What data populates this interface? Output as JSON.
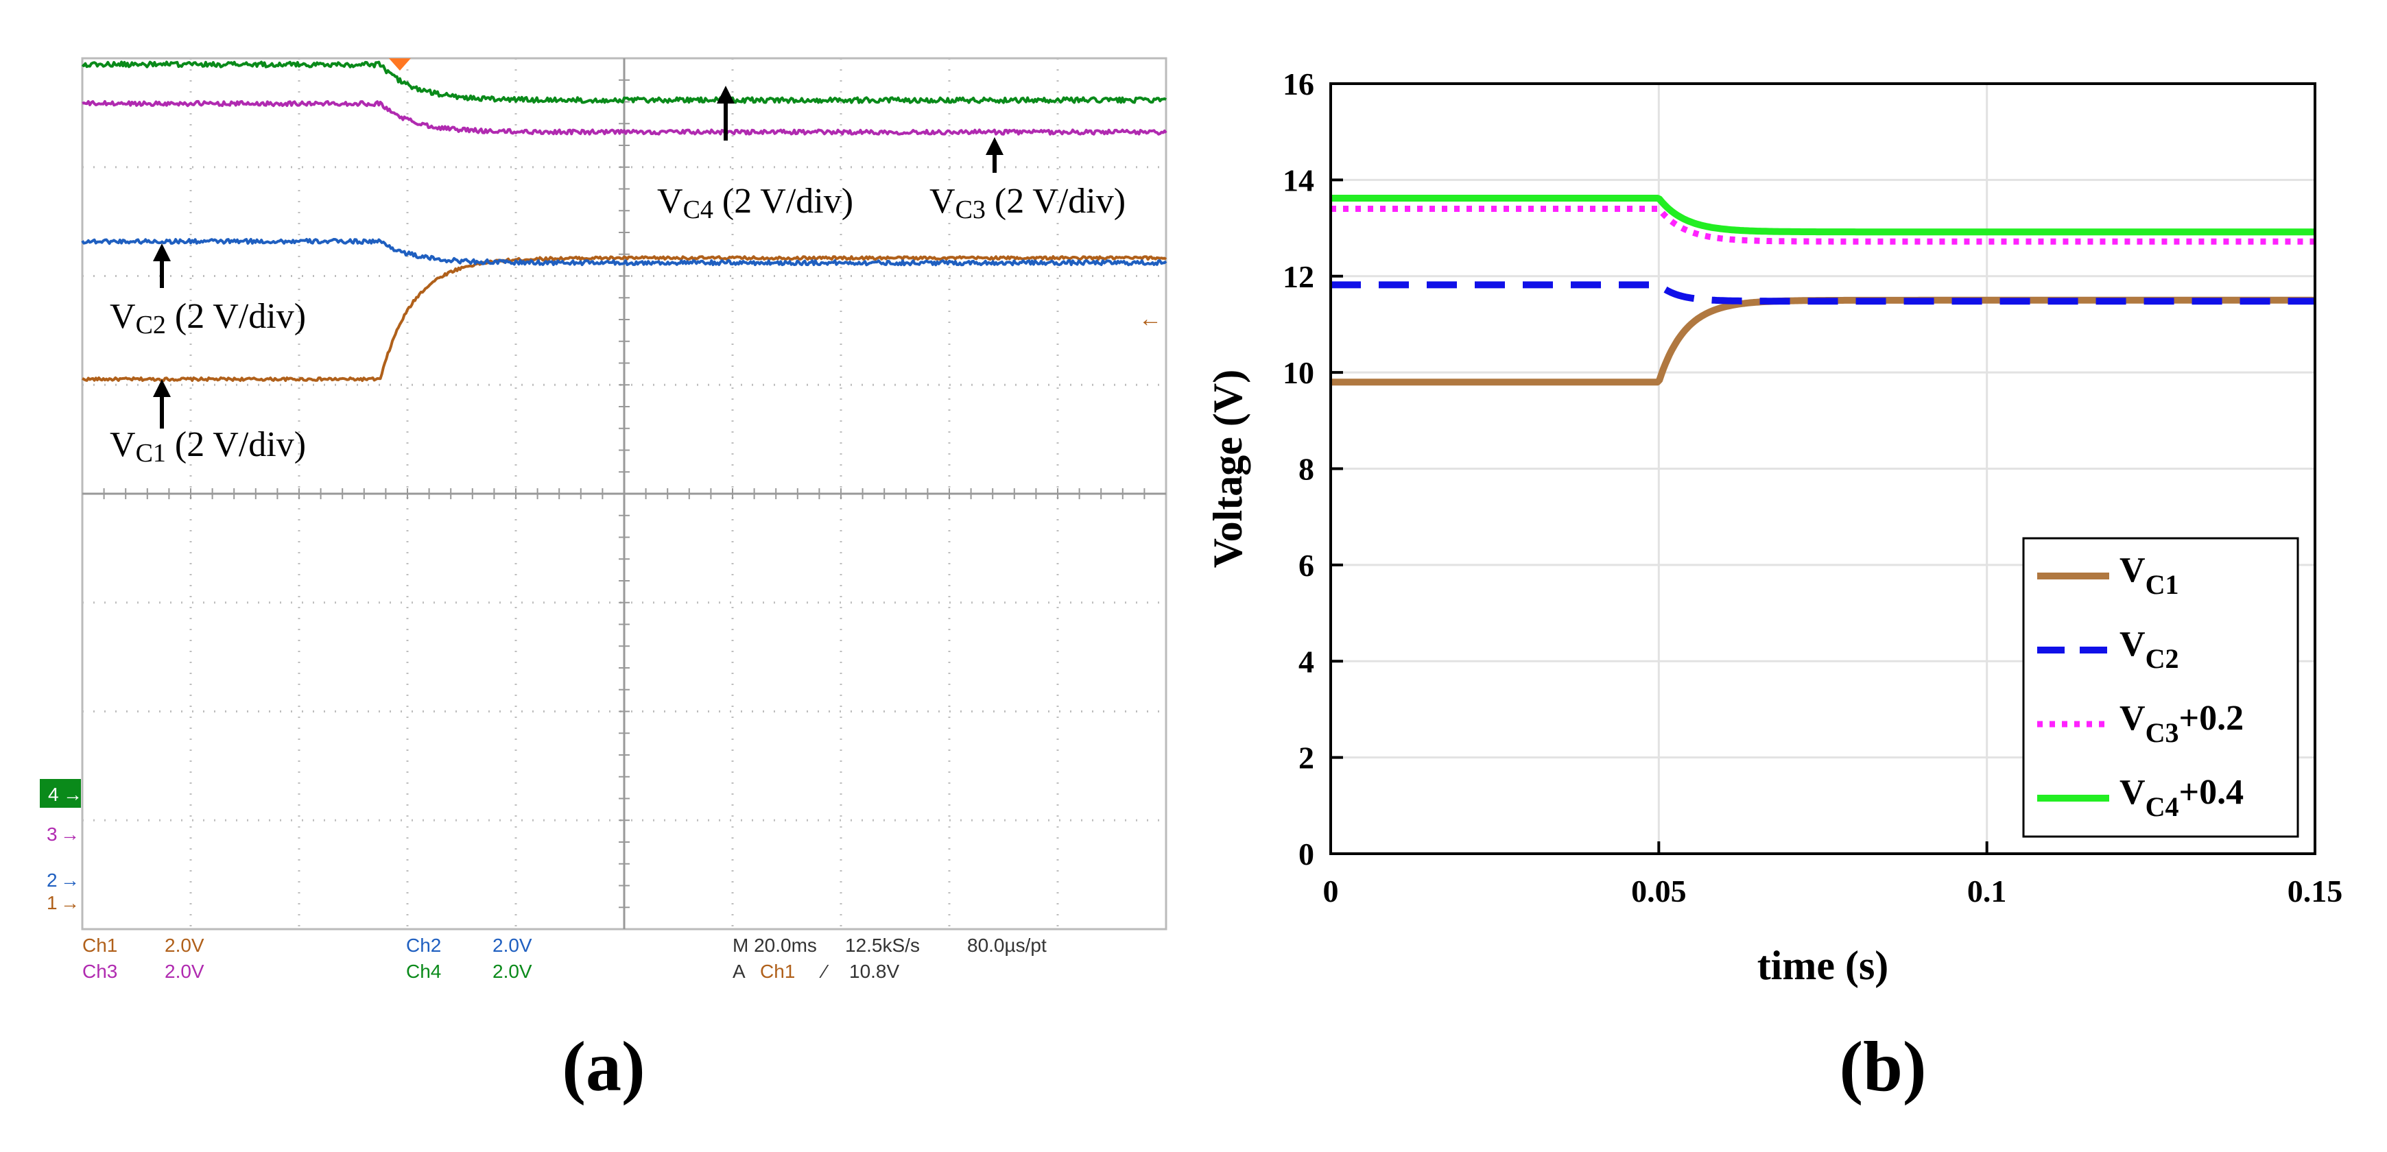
{
  "chart_data": [
    {
      "type": "line",
      "panel_label": "(a)",
      "title": "",
      "xlabel": "",
      "ylabel": "",
      "x_unit": "ms",
      "y_unit": "V",
      "xlim": [
        0,
        200
      ],
      "step_time": 55,
      "traces": [
        {
          "name": "Ch1",
          "color": "#b0601a",
          "initial_V": 9.8,
          "final_V": 11.5,
          "tau_ms": 6.0,
          "noise": 0.02
        },
        {
          "name": "Ch2",
          "color": "#1f5fc0",
          "initial_V": 11.8,
          "final_V": 11.5,
          "tau_ms": 6.0,
          "noise": 0.03
        },
        {
          "name": "Ch3",
          "color": "#b02ab0",
          "initial_V": 13.2,
          "final_V": 12.8,
          "tau_ms": 6.0,
          "noise": 0.03
        },
        {
          "name": "Ch4",
          "color": "#0a8a1a",
          "initial_V": 13.4,
          "final_V": 12.9,
          "tau_ms": 6.0,
          "noise": 0.035
        }
      ],
      "annotations": [
        {
          "sub": "C4",
          "text": " (2 V/div)"
        },
        {
          "sub": "C3",
          "text": " (2 V/div)"
        },
        {
          "sub": "C2",
          "text": " (2 V/div)"
        },
        {
          "sub": "C1",
          "text": " (2 V/div)"
        }
      ],
      "channel_markers": [
        "4",
        "3",
        "2",
        "1"
      ],
      "scale_readout": {
        "ch1_label": "Ch1",
        "ch1_value": "2.0V",
        "ch3_label": "Ch3",
        "ch3_value": "2.0V",
        "ch2_label": "Ch2",
        "ch2_value": "2.0V",
        "ch4_label": "Ch4",
        "ch4_value": "2.0V",
        "timebase": "M 20.0ms",
        "sample_rate": "12.5kS/s",
        "resolution": "80.0µs/pt",
        "trigger_prefix": "A",
        "trigger_channel": "Ch1",
        "trigger_slope": "⁄",
        "trigger_level": "10.8V"
      }
    },
    {
      "type": "line",
      "panel_label": "(b)",
      "title": "",
      "xlabel": "time (s)",
      "ylabel": "Voltage (V)",
      "xlim": [
        0,
        0.15
      ],
      "ylim": [
        0,
        16
      ],
      "xticks": [
        0,
        0.05,
        0.1,
        0.15
      ],
      "xtick_labels": [
        "0",
        "0.05",
        "0.1",
        "0.15"
      ],
      "yticks": [
        0,
        2,
        4,
        6,
        8,
        10,
        12,
        14,
        16
      ],
      "ytick_labels": [
        "0",
        "2",
        "4",
        "6",
        "8",
        "10",
        "12",
        "14",
        "16"
      ],
      "grid": true,
      "legend_position": "bottom-right",
      "step_time": 0.05,
      "series": [
        {
          "name": "VC1",
          "legend_main": "V",
          "legend_sub": "C1",
          "legend_suffix": "",
          "initial": 9.8,
          "final": 11.5,
          "tau": 0.004,
          "color": "#b07840",
          "style": "solid"
        },
        {
          "name": "VC2",
          "legend_main": "V",
          "legend_sub": "C2",
          "legend_suffix": "",
          "initial": 11.82,
          "final": 11.48,
          "tau": 0.003,
          "color": "#1010e8",
          "style": "dashed"
        },
        {
          "name": "VC3+0.2",
          "legend_main": "V",
          "legend_sub": "C3",
          "legend_suffix": "+0.2",
          "initial": 13.4,
          "final": 12.72,
          "tau": 0.004,
          "color": "#ff22ff",
          "style": "dotted"
        },
        {
          "name": "VC4+0.4",
          "legend_main": "V",
          "legend_sub": "C4",
          "legend_suffix": "+0.4",
          "initial": 13.62,
          "final": 12.92,
          "tau": 0.004,
          "color": "#22ee22",
          "style": "solid"
        }
      ]
    }
  ]
}
